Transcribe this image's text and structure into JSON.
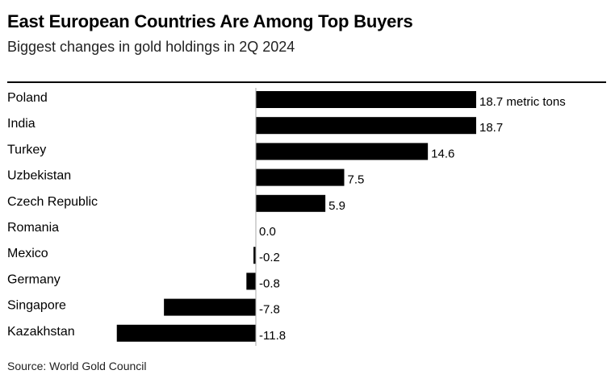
{
  "header": {
    "title": "East European Countries Are Among Top Buyers",
    "subtitle": "Biggest changes in gold holdings in 2Q 2024"
  },
  "footer": {
    "source": "Source: World Gold Council"
  },
  "chart_data": {
    "type": "bar",
    "orientation": "horizontal",
    "title": "East European Countries Are Among Top Buyers",
    "subtitle": "Biggest changes in gold holdings in 2Q 2024",
    "categories": [
      "Poland",
      "India",
      "Turkey",
      "Uzbekistan",
      "Czech Republic",
      "Romania",
      "Mexico",
      "Germany",
      "Singapore",
      "Kazakhstan"
    ],
    "values": [
      18.7,
      18.7,
      14.6,
      7.5,
      5.9,
      0.0,
      -0.2,
      -0.8,
      -7.8,
      -11.8
    ],
    "labels": [
      "18.7 metric tons",
      "18.7",
      "14.6",
      "7.5",
      "5.9",
      "0.0",
      "-0.2",
      "-0.8",
      "-7.8",
      "-11.8"
    ],
    "xlim": [
      -11.8,
      18.7
    ],
    "xlabel": "",
    "ylabel": "",
    "grid": false,
    "colors": {
      "bar": "#000000",
      "zero_line": "#aaaaaa"
    }
  }
}
